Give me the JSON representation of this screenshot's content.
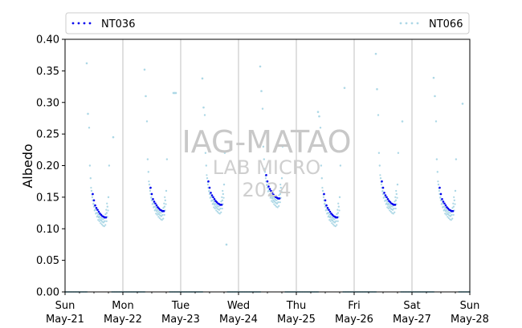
{
  "chart_data": {
    "type": "scatter",
    "ylabel": "Albedo",
    "xlabel": "",
    "ylim": [
      0,
      0.4
    ],
    "yticks": [
      "0.00",
      "0.05",
      "0.10",
      "0.15",
      "0.20",
      "0.25",
      "0.30",
      "0.35",
      "0.40"
    ],
    "xlim": [
      "2024-05-21",
      "2024-05-28"
    ],
    "xticks": [
      {
        "day": "Sun",
        "date": "May-21"
      },
      {
        "day": "Mon",
        "date": "May-22"
      },
      {
        "day": "Tue",
        "date": "May-23"
      },
      {
        "day": "Wed",
        "date": "May-24"
      },
      {
        "day": "Thu",
        "date": "May-25"
      },
      {
        "day": "Fri",
        "date": "May-26"
      },
      {
        "day": "Sat",
        "date": "May-27"
      },
      {
        "day": "Sun",
        "date": "May-28"
      }
    ],
    "vertical_gridlines": true,
    "legend_position": "top",
    "watermark": [
      "IAG-MATAO",
      "LAB MICRO",
      "2024"
    ],
    "series": [
      {
        "name": "NT036",
        "color": "#0000ee",
        "daily_curve": [
          {
            "hour": 11.5,
            "value": 0.155
          },
          {
            "hour": 12.0,
            "value": 0.145
          },
          {
            "hour": 12.5,
            "value": 0.137
          },
          {
            "hour": 13.0,
            "value": 0.133
          },
          {
            "hour": 13.5,
            "value": 0.13
          },
          {
            "hour": 14.0,
            "value": 0.127
          },
          {
            "hour": 14.5,
            "value": 0.124
          },
          {
            "hour": 15.0,
            "value": 0.122
          },
          {
            "hour": 15.5,
            "value": 0.12
          },
          {
            "hour": 16.0,
            "value": 0.119
          },
          {
            "hour": 16.5,
            "value": 0.118
          },
          {
            "hour": 17.0,
            "value": 0.118
          }
        ],
        "days": [
          {
            "day_offset": 0,
            "shift": 0.0
          },
          {
            "day_offset": 1,
            "shift": 0.01
          },
          {
            "day_offset": 2,
            "shift": 0.02
          },
          {
            "day_offset": 3,
            "shift": 0.03
          },
          {
            "day_offset": 4,
            "shift": 0.0
          },
          {
            "day_offset": 5,
            "shift": 0.02
          },
          {
            "day_offset": 6,
            "shift": 0.01
          }
        ]
      },
      {
        "name": "NT066",
        "color": "#add8e6",
        "daily_curve": [
          {
            "hour": 10.0,
            "value": 0.26
          },
          {
            "hour": 10.3,
            "value": 0.2
          },
          {
            "hour": 10.6,
            "value": 0.18
          },
          {
            "hour": 11.0,
            "value": 0.16
          },
          {
            "hour": 11.5,
            "value": 0.145
          },
          {
            "hour": 12.0,
            "value": 0.135
          },
          {
            "hour": 12.5,
            "value": 0.13
          },
          {
            "hour": 13.0,
            "value": 0.125
          },
          {
            "hour": 13.5,
            "value": 0.12
          },
          {
            "hour": 14.0,
            "value": 0.118
          },
          {
            "hour": 14.5,
            "value": 0.115
          },
          {
            "hour": 15.0,
            "value": 0.113
          },
          {
            "hour": 15.5,
            "value": 0.111
          },
          {
            "hour": 16.0,
            "value": 0.11
          },
          {
            "hour": 16.5,
            "value": 0.112
          },
          {
            "hour": 17.0,
            "value": 0.118
          },
          {
            "hour": 17.3,
            "value": 0.125
          },
          {
            "hour": 17.6,
            "value": 0.135
          },
          {
            "hour": 18.0,
            "value": 0.15
          },
          {
            "hour": 18.3,
            "value": 0.2
          }
        ],
        "night_value": 0.0,
        "outliers": [
          {
            "x": "2024-05-21 09:00",
            "y": 0.362
          },
          {
            "x": "2024-05-21 09:30",
            "y": 0.282
          },
          {
            "x": "2024-05-21 20:00",
            "y": 0.245
          },
          {
            "x": "2024-05-22 09:00",
            "y": 0.352
          },
          {
            "x": "2024-05-22 09:30",
            "y": 0.31
          },
          {
            "x": "2024-05-22 21:00",
            "y": 0.315
          },
          {
            "x": "2024-05-22 21:30",
            "y": 0.315
          },
          {
            "x": "2024-05-22 22:00",
            "y": 0.315
          },
          {
            "x": "2024-05-23 09:00",
            "y": 0.338
          },
          {
            "x": "2024-05-23 09:30",
            "y": 0.292
          },
          {
            "x": "2024-05-23 19:00",
            "y": 0.075
          },
          {
            "x": "2024-05-24 09:00",
            "y": 0.357
          },
          {
            "x": "2024-05-24 09:30",
            "y": 0.318
          },
          {
            "x": "2024-05-25 09:00",
            "y": 0.285
          },
          {
            "x": "2024-05-25 09:30",
            "y": 0.278
          },
          {
            "x": "2024-05-25 20:00",
            "y": 0.323
          },
          {
            "x": "2024-05-26 09:00",
            "y": 0.377
          },
          {
            "x": "2024-05-26 09:30",
            "y": 0.321
          },
          {
            "x": "2024-05-26 20:00",
            "y": 0.27
          },
          {
            "x": "2024-05-27 09:00",
            "y": 0.339
          },
          {
            "x": "2024-05-27 09:30",
            "y": 0.31
          },
          {
            "x": "2024-05-27 21:00",
            "y": 0.298
          }
        ]
      }
    ]
  }
}
